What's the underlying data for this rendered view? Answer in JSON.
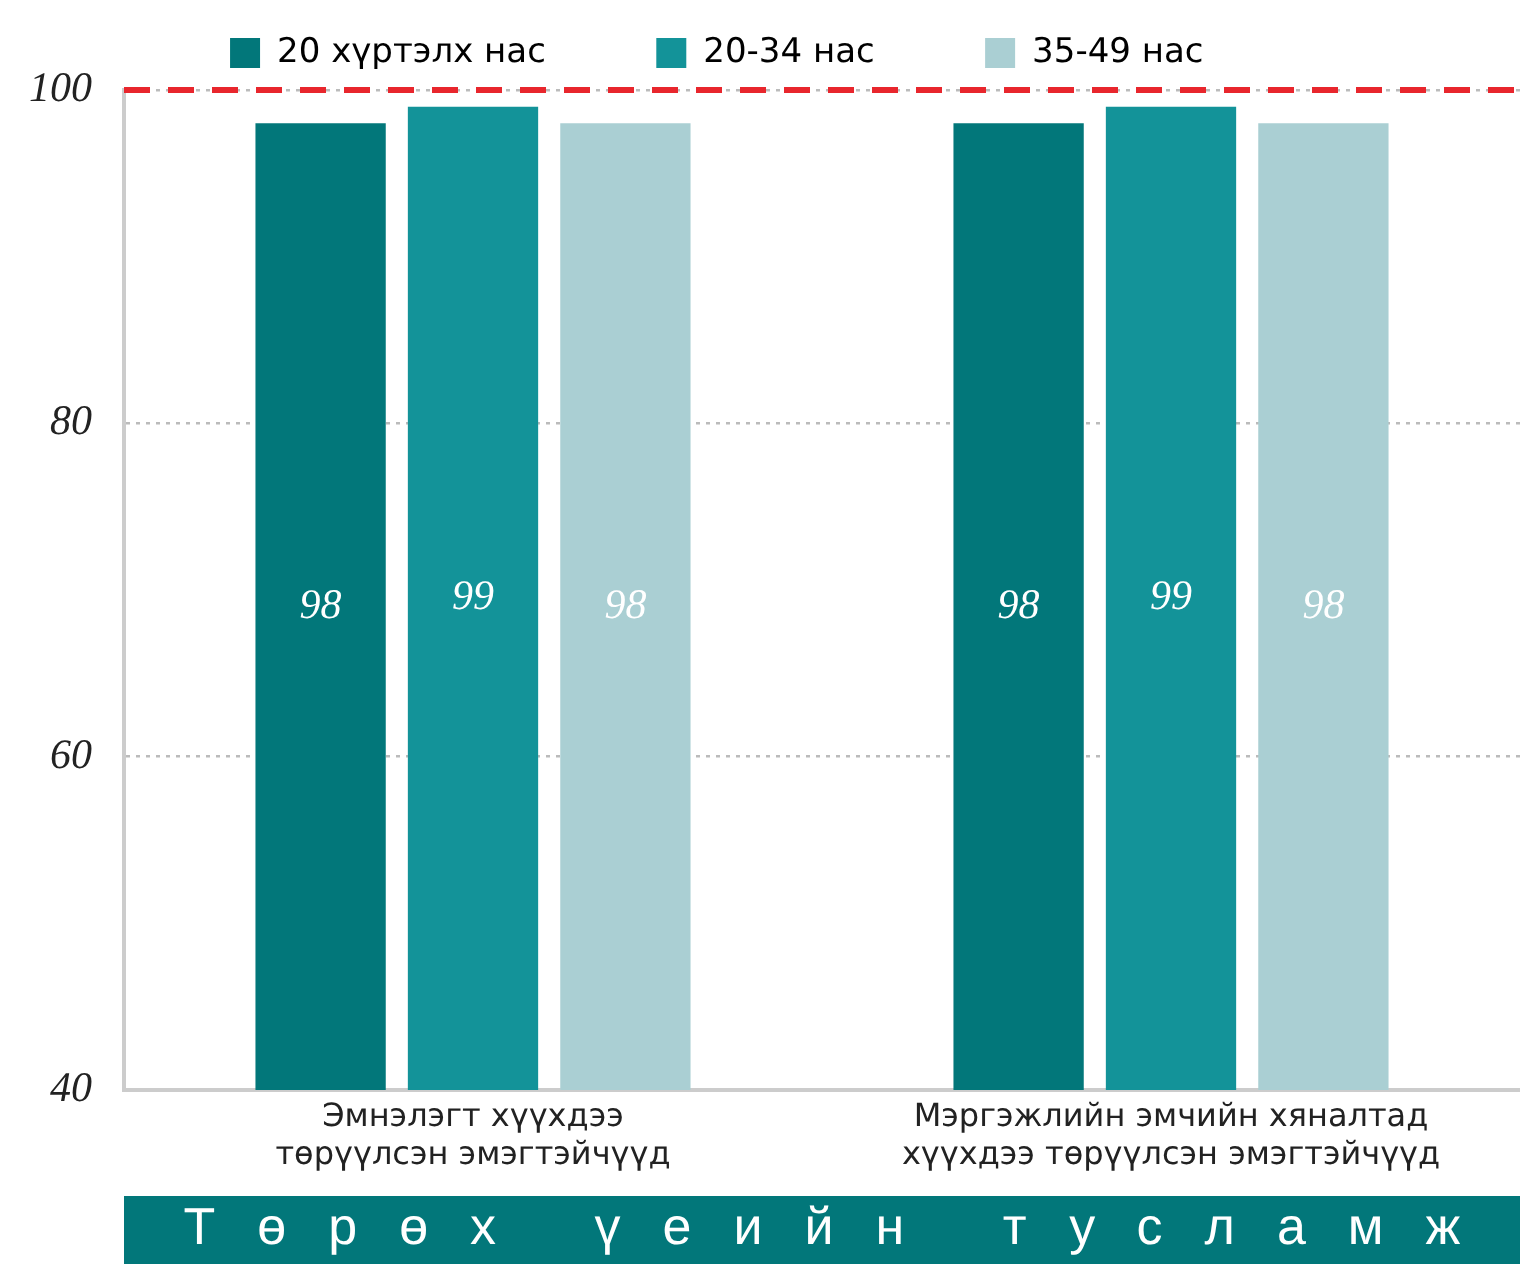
{
  "chart_data": {
    "type": "bar",
    "categories": [
      "Эмнэлэгт хүүхдээ төрүүлсэн эмэгтэйчүүд",
      "Мэргэжлийн эмчийн хяналтад хүүхдээ төрүүлсэн эмэгтэйчүүд"
    ],
    "series": [
      {
        "name": "20 хүртэлх нас",
        "color": "#02777a",
        "values": [
          98,
          98
        ]
      },
      {
        "name": "20-34 нас",
        "color": "#139399",
        "values": [
          99,
          99
        ]
      },
      {
        "name": "35-49 нас",
        "color": "#aacfd3",
        "values": [
          98,
          98
        ]
      }
    ],
    "xlabel": "Төрөх үеийн тусламж",
    "ylim": [
      40,
      100
    ],
    "yticks": [
      40,
      60,
      80,
      100
    ],
    "grid": "y",
    "legend": "top",
    "data_labels": true,
    "ref_lines": [
      {
        "axis": "y",
        "value": 100,
        "color": "#e8262d",
        "line_style": "dashed"
      }
    ]
  }
}
